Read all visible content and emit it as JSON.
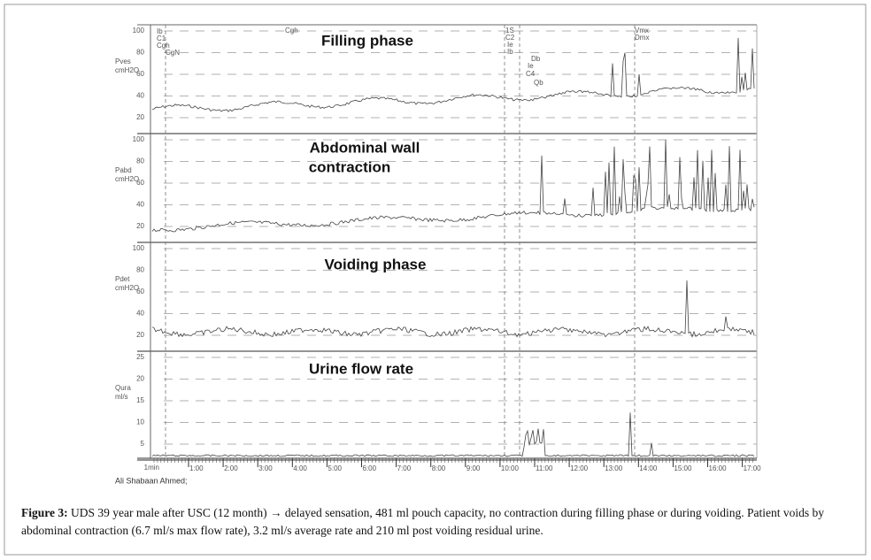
{
  "figure": {
    "phase_labels": [
      "Filling phase",
      "Abdominal wall",
      "contraction",
      "Voiding phase",
      "Urine flow rate"
    ],
    "panels": [
      {
        "name": "Pves",
        "unit": "cmH2O",
        "scale": [
          100,
          80,
          60,
          40,
          20
        ]
      },
      {
        "name": "Pabd",
        "unit": "cmH2O",
        "scale": [
          100,
          80,
          60,
          40,
          20
        ]
      },
      {
        "name": "Pdet",
        "unit": "cmH2O",
        "scale": [
          100,
          80,
          60,
          40,
          20
        ]
      },
      {
        "name": "Qura",
        "unit": "ml/s",
        "scale": [
          25,
          20,
          15,
          10,
          5
        ]
      }
    ],
    "event_labels": [
      "Ib",
      "C1",
      "Cgh",
      "CgN",
      "Cgh",
      "1S",
      "C2",
      "Ie",
      "Ib",
      "Db",
      "Ie",
      "C4",
      "Qb",
      "Vmx",
      "Dmx"
    ],
    "time_axis": {
      "unit": "1min",
      "ticks": [
        "1:00",
        "2:00",
        "3:00",
        "4:00",
        "5:00",
        "6:00",
        "7:00",
        "8:00",
        "9:00",
        "10:00",
        "11:00",
        "12:00",
        "13:00",
        "14:00",
        "15:00",
        "16:00",
        "17:00"
      ]
    },
    "author": "Ali Shabaan Ahmed;"
  },
  "caption": {
    "label": "Figure 3:",
    "text": "UDS 39 year male after USC (12 month) → delayed sensation, 481 ml pouch capacity, no contraction during filling phase or during voiding. Patient voids by abdominal contraction (6.7 ml/s max flow rate), 3.2 ml/s average rate and 210 ml post voiding residual urine."
  }
}
